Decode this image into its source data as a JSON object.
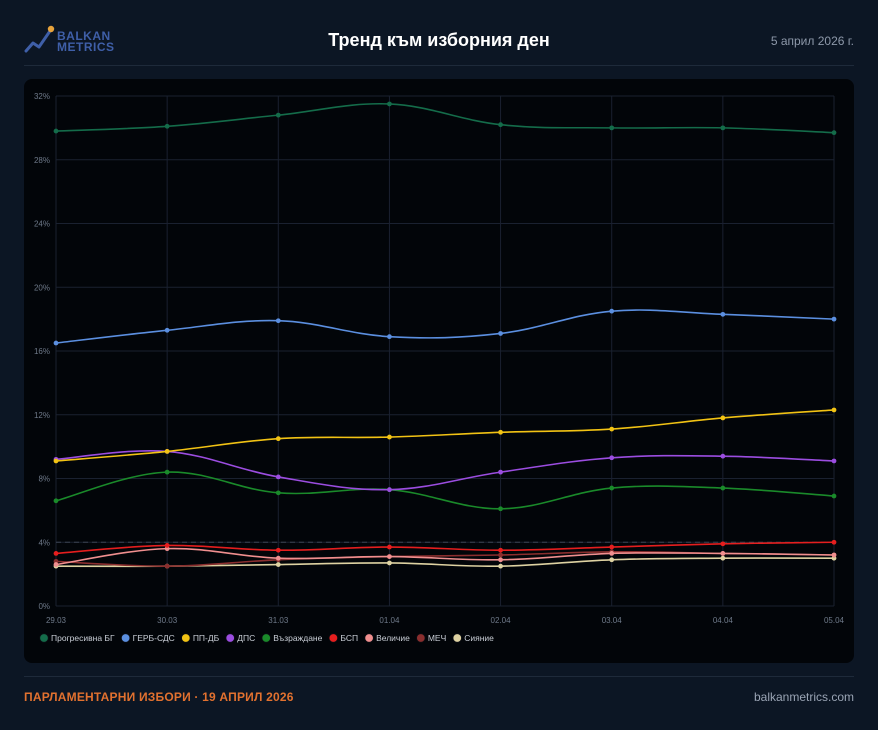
{
  "header": {
    "logo_line1": "BALKAN",
    "logo_line2": "METRICS",
    "title": "Тренд към изборния ден",
    "date": "5 април 2026 г."
  },
  "footer": {
    "left": "ПАРЛАМЕНТАРНИ ИЗБОРИ · 19 АПРИЛ 2026",
    "right": "balkanmetrics.com"
  },
  "colors": {
    "logo_accent": "#e8a33c",
    "logo_blue": "#3f5fa8",
    "footer_accent": "#e2712f",
    "grid": "#1a2130",
    "threshold": "#3a4250"
  },
  "chart_data": {
    "type": "line",
    "title": "",
    "xlabel": "",
    "ylabel": "",
    "categories": [
      "29.03",
      "30.03",
      "31.03",
      "01.04",
      "02.04",
      "03.04",
      "04.04",
      "05.04"
    ],
    "ylim": [
      0,
      32
    ],
    "yticks": [
      0,
      4,
      8,
      12,
      16,
      20,
      24,
      28,
      32
    ],
    "ytick_labels": [
      "0%",
      "4%",
      "8%",
      "12%",
      "16%",
      "20%",
      "24%",
      "28%",
      "32%"
    ],
    "threshold": 4,
    "grid": true,
    "legend_position": "bottom-left",
    "series": [
      {
        "name": "Прогресивна БГ",
        "color": "#146c4a",
        "values": [
          29.8,
          30.1,
          30.8,
          31.5,
          30.2,
          30.0,
          30.0,
          29.7
        ]
      },
      {
        "name": "ГЕРБ-СДС",
        "color": "#5b8fe0",
        "values": [
          16.5,
          17.3,
          17.9,
          16.9,
          17.1,
          18.5,
          18.3,
          18.0
        ]
      },
      {
        "name": "ПП-ДБ",
        "color": "#f2c314",
        "values": [
          9.1,
          9.7,
          10.5,
          10.6,
          10.9,
          11.1,
          11.8,
          12.3
        ]
      },
      {
        "name": "ДПС",
        "color": "#9b4de0",
        "values": [
          9.2,
          9.7,
          8.1,
          7.3,
          8.4,
          9.3,
          9.4,
          9.1
        ]
      },
      {
        "name": "Възраждане",
        "color": "#1a8a2a",
        "values": [
          6.6,
          8.4,
          7.1,
          7.3,
          6.1,
          7.4,
          7.4,
          6.9
        ]
      },
      {
        "name": "БСП",
        "color": "#e51e1e",
        "values": [
          3.3,
          3.8,
          3.5,
          3.7,
          3.5,
          3.7,
          3.9,
          4.0
        ]
      },
      {
        "name": "Величие",
        "color": "#f08f8f",
        "values": [
          2.6,
          3.6,
          3.0,
          3.1,
          2.9,
          3.3,
          3.3,
          3.2
        ]
      },
      {
        "name": "МЕЧ",
        "color": "#8a2e2e",
        "values": [
          2.8,
          2.5,
          2.9,
          3.1,
          3.2,
          3.4,
          3.3,
          3.2
        ]
      },
      {
        "name": "Сияние",
        "color": "#ded2a2",
        "values": [
          2.5,
          2.5,
          2.6,
          2.7,
          2.5,
          2.9,
          3.0,
          3.0
        ]
      }
    ]
  }
}
